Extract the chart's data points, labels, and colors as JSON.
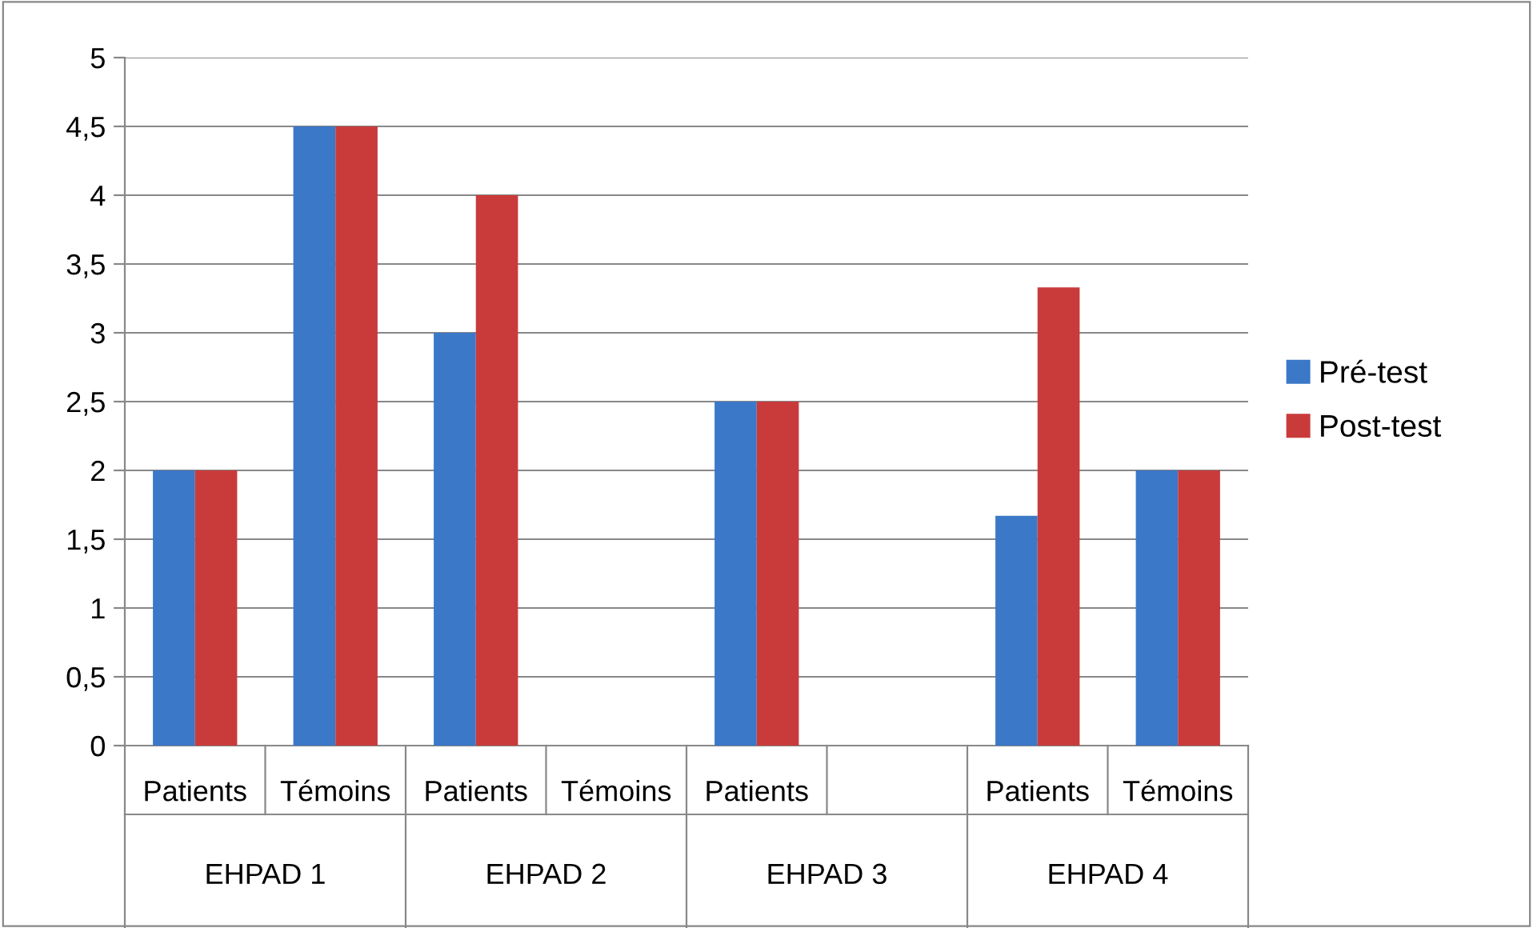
{
  "chart_data": {
    "type": "bar",
    "categories": [
      "Patients",
      "Témoins",
      "Patients",
      "Témoins",
      "Patients",
      null,
      "Patients",
      "Témoins"
    ],
    "series": [
      {
        "name": "Pré-test",
        "color": "#3b78c8",
        "values": [
          2,
          4.5,
          3,
          null,
          2.5,
          null,
          1.67,
          2
        ]
      },
      {
        "name": "Post-test",
        "color": "#c93b3b",
        "values": [
          2,
          4.5,
          4,
          null,
          2.5,
          null,
          3.33,
          2
        ]
      }
    ],
    "annotations": [
      "EHPAD 1",
      "EHPAD 2",
      "EHPAD 3",
      "EHPAD 4"
    ],
    "ylim": [
      0,
      5
    ],
    "yticks": [
      0,
      {
        "value": 0.5,
        "label": "0,5"
      },
      1,
      {
        "value": 1.5,
        "label": "1,5"
      },
      2,
      {
        "value": 2.5,
        "label": "2,5"
      },
      3,
      {
        "value": 3.5,
        "label": "3,5"
      },
      4,
      {
        "value": 4.5,
        "label": "4,5"
      },
      5
    ],
    "grid": "y",
    "legend": "right"
  }
}
